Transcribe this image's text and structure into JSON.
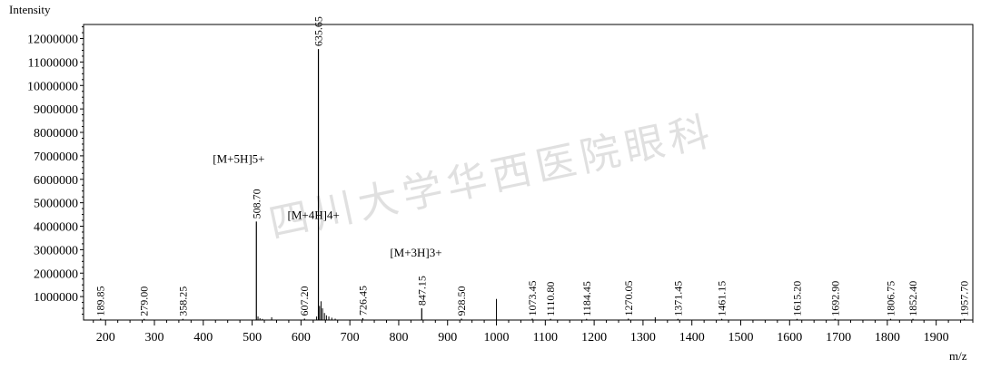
{
  "chart_data": {
    "type": "bar",
    "ylabel": "Intensity",
    "xlabel": "m/z",
    "xlim": [
      155,
      1975
    ],
    "ylim": [
      0,
      12600000
    ],
    "x_ticks": [
      200,
      300,
      400,
      500,
      600,
      700,
      800,
      900,
      1000,
      1100,
      1200,
      1300,
      1400,
      1500,
      1600,
      1700,
      1800,
      1900
    ],
    "y_ticks": [
      1000000,
      2000000,
      3000000,
      4000000,
      5000000,
      6000000,
      7000000,
      8000000,
      9000000,
      10000000,
      11000000,
      12000000
    ],
    "peaks": [
      {
        "mz": 189.85,
        "label": "189.85",
        "intensity": 60000
      },
      {
        "mz": 279.0,
        "label": "279.00",
        "intensity": 50000
      },
      {
        "mz": 358.25,
        "label": "358.25",
        "intensity": 50000
      },
      {
        "mz": 508.7,
        "label": "508.70",
        "intensity": 4200000
      },
      {
        "mz": 607.2,
        "label": "607.20",
        "intensity": 60000
      },
      {
        "mz": 635.65,
        "label": "635.65",
        "intensity": 11550000
      },
      {
        "mz": 726.45,
        "label": "726.45",
        "intensity": 80000
      },
      {
        "mz": 847.15,
        "label": "847.15",
        "intensity": 500000
      },
      {
        "mz": 928.5,
        "label": "928.50",
        "intensity": 60000
      },
      {
        "mz": 1073.45,
        "label": "1073.45",
        "intensity": 60000
      },
      {
        "mz": 1110.8,
        "label": "1110.80",
        "intensity": 50000
      },
      {
        "mz": 1184.45,
        "label": "1184.45",
        "intensity": 50000
      },
      {
        "mz": 1270.05,
        "label": "1270.05",
        "intensity": 60000
      },
      {
        "mz": 1371.45,
        "label": "1371.45",
        "intensity": 50000
      },
      {
        "mz": 1461.15,
        "label": "1461.15",
        "intensity": 50000
      },
      {
        "mz": 1615.2,
        "label": "1615.20",
        "intensity": 50000
      },
      {
        "mz": 1692.9,
        "label": "1692.90",
        "intensity": 50000
      },
      {
        "mz": 1806.75,
        "label": "1806.75",
        "intensity": 50000
      },
      {
        "mz": 1852.4,
        "label": "1852.40",
        "intensity": 50000
      },
      {
        "mz": 1957.7,
        "label": "1957.70",
        "intensity": 50000
      }
    ],
    "minor_peaks": [
      {
        "mz": 512,
        "intensity": 150000
      },
      {
        "mz": 516,
        "intensity": 80000
      },
      {
        "mz": 521,
        "intensity": 50000
      },
      {
        "mz": 540,
        "intensity": 120000
      },
      {
        "mz": 632,
        "intensity": 150000
      },
      {
        "mz": 638,
        "intensity": 600000
      },
      {
        "mz": 641,
        "intensity": 800000
      },
      {
        "mz": 644,
        "intensity": 500000
      },
      {
        "mz": 648,
        "intensity": 300000
      },
      {
        "mz": 652,
        "intensity": 200000
      },
      {
        "mz": 657,
        "intensity": 150000
      },
      {
        "mz": 663,
        "intensity": 100000
      },
      {
        "mz": 670,
        "intensity": 60000
      },
      {
        "mz": 1000,
        "intensity": 900000
      },
      {
        "mz": 1325,
        "intensity": 120000
      }
    ],
    "annotations": [
      {
        "text": "[M+5H]5+",
        "mz": 508.7
      },
      {
        "text": "[M+4H]4+",
        "mz": 635.65
      },
      {
        "text": "[M+3H]3+",
        "mz": 847.15
      }
    ],
    "watermark": "四川大学华西医院眼科"
  }
}
